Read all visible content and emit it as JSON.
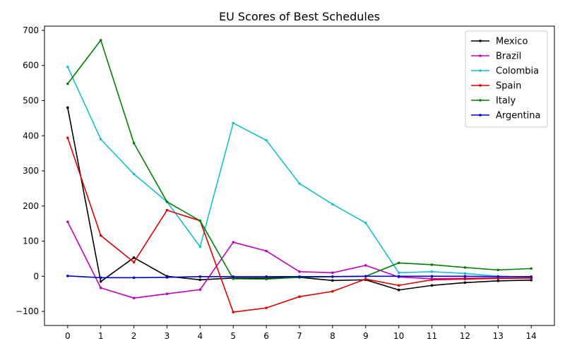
{
  "chart_data": {
    "type": "line",
    "title": "EU Scores of Best Schedules",
    "xlabel": "",
    "ylabel": "",
    "x": [
      0,
      1,
      2,
      3,
      4,
      5,
      6,
      7,
      8,
      9,
      10,
      11,
      12,
      13,
      14
    ],
    "xlim": [
      -0.7,
      14.7
    ],
    "ylim": [
      -140,
      712
    ],
    "yticks": [
      -100,
      0,
      100,
      200,
      300,
      400,
      500,
      600,
      700
    ],
    "grid": false,
    "legend_position": "top-right",
    "series": [
      {
        "name": "Mexico",
        "color": "#000000",
        "values": [
          480,
          -15,
          53,
          0,
          -10,
          -5,
          -5,
          -3,
          -12,
          -10,
          -39,
          -26,
          -18,
          -13,
          -11
        ]
      },
      {
        "name": "Brazil",
        "color": "#bf00bf",
        "values": [
          155,
          -33,
          -62,
          -50,
          -38,
          97,
          72,
          13,
          10,
          31,
          -2,
          -7,
          -6,
          -5,
          -5
        ]
      },
      {
        "name": "Colombia",
        "color": "#17becf",
        "values": [
          596,
          390,
          291,
          212,
          84,
          436,
          387,
          264,
          205,
          152,
          10,
          13,
          8,
          0,
          -2
        ]
      },
      {
        "name": "Spain",
        "color": "#e00000",
        "values": [
          394,
          116,
          40,
          188,
          158,
          -102,
          -90,
          -58,
          -43,
          -8,
          -26,
          -10,
          -8,
          -6,
          -5
        ]
      },
      {
        "name": "Italy",
        "color": "#008000",
        "values": [
          548,
          672,
          379,
          212,
          158,
          -7,
          -8,
          -3,
          -1,
          0,
          38,
          33,
          25,
          18,
          22
        ]
      },
      {
        "name": "Argentina",
        "color": "#0000d0",
        "values": [
          1,
          -4,
          -4,
          -3,
          -1,
          -1,
          -1,
          -1,
          -1,
          0,
          0,
          0,
          0,
          -1,
          -1
        ]
      }
    ]
  }
}
